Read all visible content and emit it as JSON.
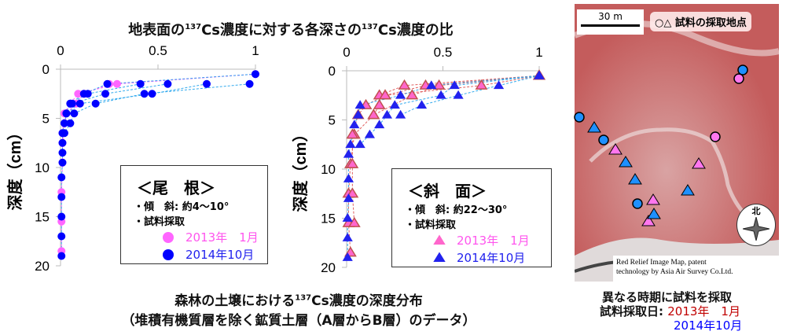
{
  "title": {
    "pre": "地表面の",
    "sup1": "137",
    "mid": "Cs濃度に対する各深さの",
    "sup2": "137",
    "post": "Cs濃度の比"
  },
  "caption": {
    "line1_pre": "森林の土壌における",
    "line1_sup": "137",
    "line1_post": "Cs濃度の深度分布",
    "line2": "（堆積有機質層を除く鉱質土層（A層からB層）のデータ）"
  },
  "map": {
    "scale_label": "30 m",
    "legend_label": "○△ 試料の採取地点",
    "north_label": "北",
    "credit_line1": "Red Relief Image Map, patent",
    "credit_line2": "technology by  Asia Air Survey Co.Ltd.",
    "note1": "異なる時期に試料を採取",
    "note2_label": "試料採取日:",
    "date1": "2013年　1月",
    "date2": "2014年10月",
    "colors": {
      "date1": "#c00000",
      "date2": "#0000ff"
    }
  },
  "chart_data": [
    {
      "type": "scatter",
      "name": "ridge",
      "title": "＜尾　根＞",
      "note1": "・傾　斜: 約4〜10°",
      "note2": "・試料採取",
      "ylabel": "深度（cm）",
      "xlim": [
        0,
        1
      ],
      "ylim": [
        0,
        20
      ],
      "y_inverted": true,
      "x_axis_position": "top",
      "xticks": [
        "0",
        "0.5",
        "1"
      ],
      "yticks": [
        "0",
        "5",
        "10",
        "15",
        "20"
      ],
      "legend_placement": "bottom-right",
      "series": [
        {
          "name": "2013年　1月",
          "marker": "circle",
          "color": "#ff66ff",
          "line_color": "#ff66ff",
          "profiles": [
            [
              [
                1,
                0.5
              ],
              [
                0.29,
                1.5
              ],
              [
                0.09,
                2.5
              ],
              [
                0.05,
                3.5
              ],
              [
                0.02,
                4.5
              ],
              [
                0.01,
                6.5
              ],
              [
                0.01,
                9.5
              ],
              [
                0.005,
                12.5
              ],
              [
                0.005,
                15.5
              ],
              [
                0.005,
                18.5
              ]
            ],
            [
              [
                1,
                0.5
              ],
              [
                0.25,
                1.5
              ],
              [
                0.12,
                2.5
              ],
              [
                0.08,
                3.5
              ],
              [
                0.03,
                4.5
              ],
              [
                0.01,
                7.5
              ]
            ]
          ]
        },
        {
          "name": "2014年10月",
          "marker": "circle",
          "color": "#0000ff",
          "line_color": "#33aaee",
          "profiles": [
            [
              [
                1,
                0.5
              ],
              [
                0.24,
                1.5
              ],
              [
                0.12,
                2.5
              ],
              [
                0.05,
                3.5
              ],
              [
                0.03,
                4.5
              ],
              [
                0.02,
                5.5
              ],
              [
                0.01,
                6.5
              ],
              [
                0.01,
                7.5
              ],
              [
                0.01,
                8.5
              ],
              [
                0.01,
                9.5
              ],
              [
                0.005,
                11
              ],
              [
                0.005,
                13
              ],
              [
                0.005,
                15
              ],
              [
                0.005,
                17
              ],
              [
                0.005,
                19
              ]
            ],
            [
              [
                0.97,
                1.5
              ],
              [
                0.43,
                2.5
              ],
              [
                0.18,
                3.5
              ],
              [
                0.07,
                4.5
              ],
              [
                0.05,
                5.5
              ],
              [
                0.02,
                6.5
              ]
            ],
            [
              [
                0.75,
                1.5
              ],
              [
                0.47,
                2.5
              ],
              [
                0.1,
                3.5
              ],
              [
                0.03,
                4.5
              ]
            ],
            [
              [
                0.55,
                1.5
              ],
              [
                0.23,
                2.5
              ],
              [
                0.06,
                3.5
              ]
            ],
            [
              [
                0.41,
                1.5
              ],
              [
                0.14,
                2.5
              ],
              [
                0.05,
                3.5
              ]
            ]
          ]
        }
      ]
    },
    {
      "type": "scatter",
      "name": "slope",
      "title": "＜斜　面＞",
      "note1": "・傾　斜: 約22〜30°",
      "note2": "・試料採取",
      "ylabel": "深度（cm）",
      "xlim": [
        0,
        1
      ],
      "ylim": [
        0,
        20
      ],
      "y_inverted": true,
      "x_axis_position": "top",
      "xticks": [
        "0",
        "0.5",
        "1"
      ],
      "yticks": [
        "0",
        "5",
        "10",
        "15",
        "20"
      ],
      "legend_placement": "bottom-right",
      "series": [
        {
          "name": "2013年　1月",
          "marker": "triangle",
          "color": "#ff66cc",
          "line_color": "#e06060",
          "profiles": [
            [
              [
                1,
                0.5
              ],
              [
                0.3,
                1.5
              ],
              [
                0.17,
                2.5
              ],
              [
                0.17,
                3.5
              ],
              [
                0.14,
                4.5
              ],
              [
                0.04,
                6.5
              ],
              [
                0.02,
                9.5
              ],
              [
                0.01,
                12.5
              ],
              [
                0.01,
                15.5
              ],
              [
                0.02,
                18.5
              ]
            ],
            [
              [
                1,
                0.5
              ],
              [
                0.41,
                1.5
              ],
              [
                0.2,
                2.5
              ],
              [
                0.1,
                3.5
              ],
              [
                0.06,
                4.5
              ],
              [
                0.03,
                6.5
              ],
              [
                0.03,
                9.5
              ],
              [
                0.03,
                12.5
              ],
              [
                0.04,
                15.5
              ]
            ],
            [
              [
                1,
                0.5
              ],
              [
                0.48,
                1.5
              ],
              [
                0.34,
                2.5
              ],
              [
                0.14,
                4.5
              ]
            ],
            [
              [
                1,
                0.5
              ],
              [
                0.7,
                1.5
              ],
              [
                0.2,
                2.5
              ]
            ]
          ]
        },
        {
          "name": "2014年10月",
          "marker": "triangle",
          "color": "#2222ee",
          "line_color": "#33aaee",
          "profiles": [
            [
              [
                1,
                0.5
              ],
              [
                0.44,
                1.5
              ],
              [
                0.28,
                2.5
              ],
              [
                0.07,
                3.5
              ],
              [
                0.06,
                4.5
              ],
              [
                0.04,
                5.5
              ],
              [
                0.02,
                7.5
              ],
              [
                0.01,
                8.5
              ],
              [
                0.01,
                11
              ],
              [
                0.01,
                13
              ],
              [
                0.005,
                15
              ],
              [
                0.005,
                17
              ],
              [
                0.005,
                19
              ]
            ],
            [
              [
                1,
                0.5
              ],
              [
                0.56,
                1.5
              ],
              [
                0.49,
                2.5
              ],
              [
                0.25,
                3.5
              ],
              [
                0.21,
                4.5
              ],
              [
                0.17,
                5.5
              ],
              [
                0.12,
                6.5
              ],
              [
                0.07,
                7.5
              ]
            ],
            [
              [
                1,
                0.5
              ],
              [
                0.79,
                1.5
              ],
              [
                0.58,
                2.5
              ],
              [
                0.39,
                3.5
              ],
              [
                0.28,
                4.5
              ]
            ]
          ]
        }
      ]
    }
  ]
}
